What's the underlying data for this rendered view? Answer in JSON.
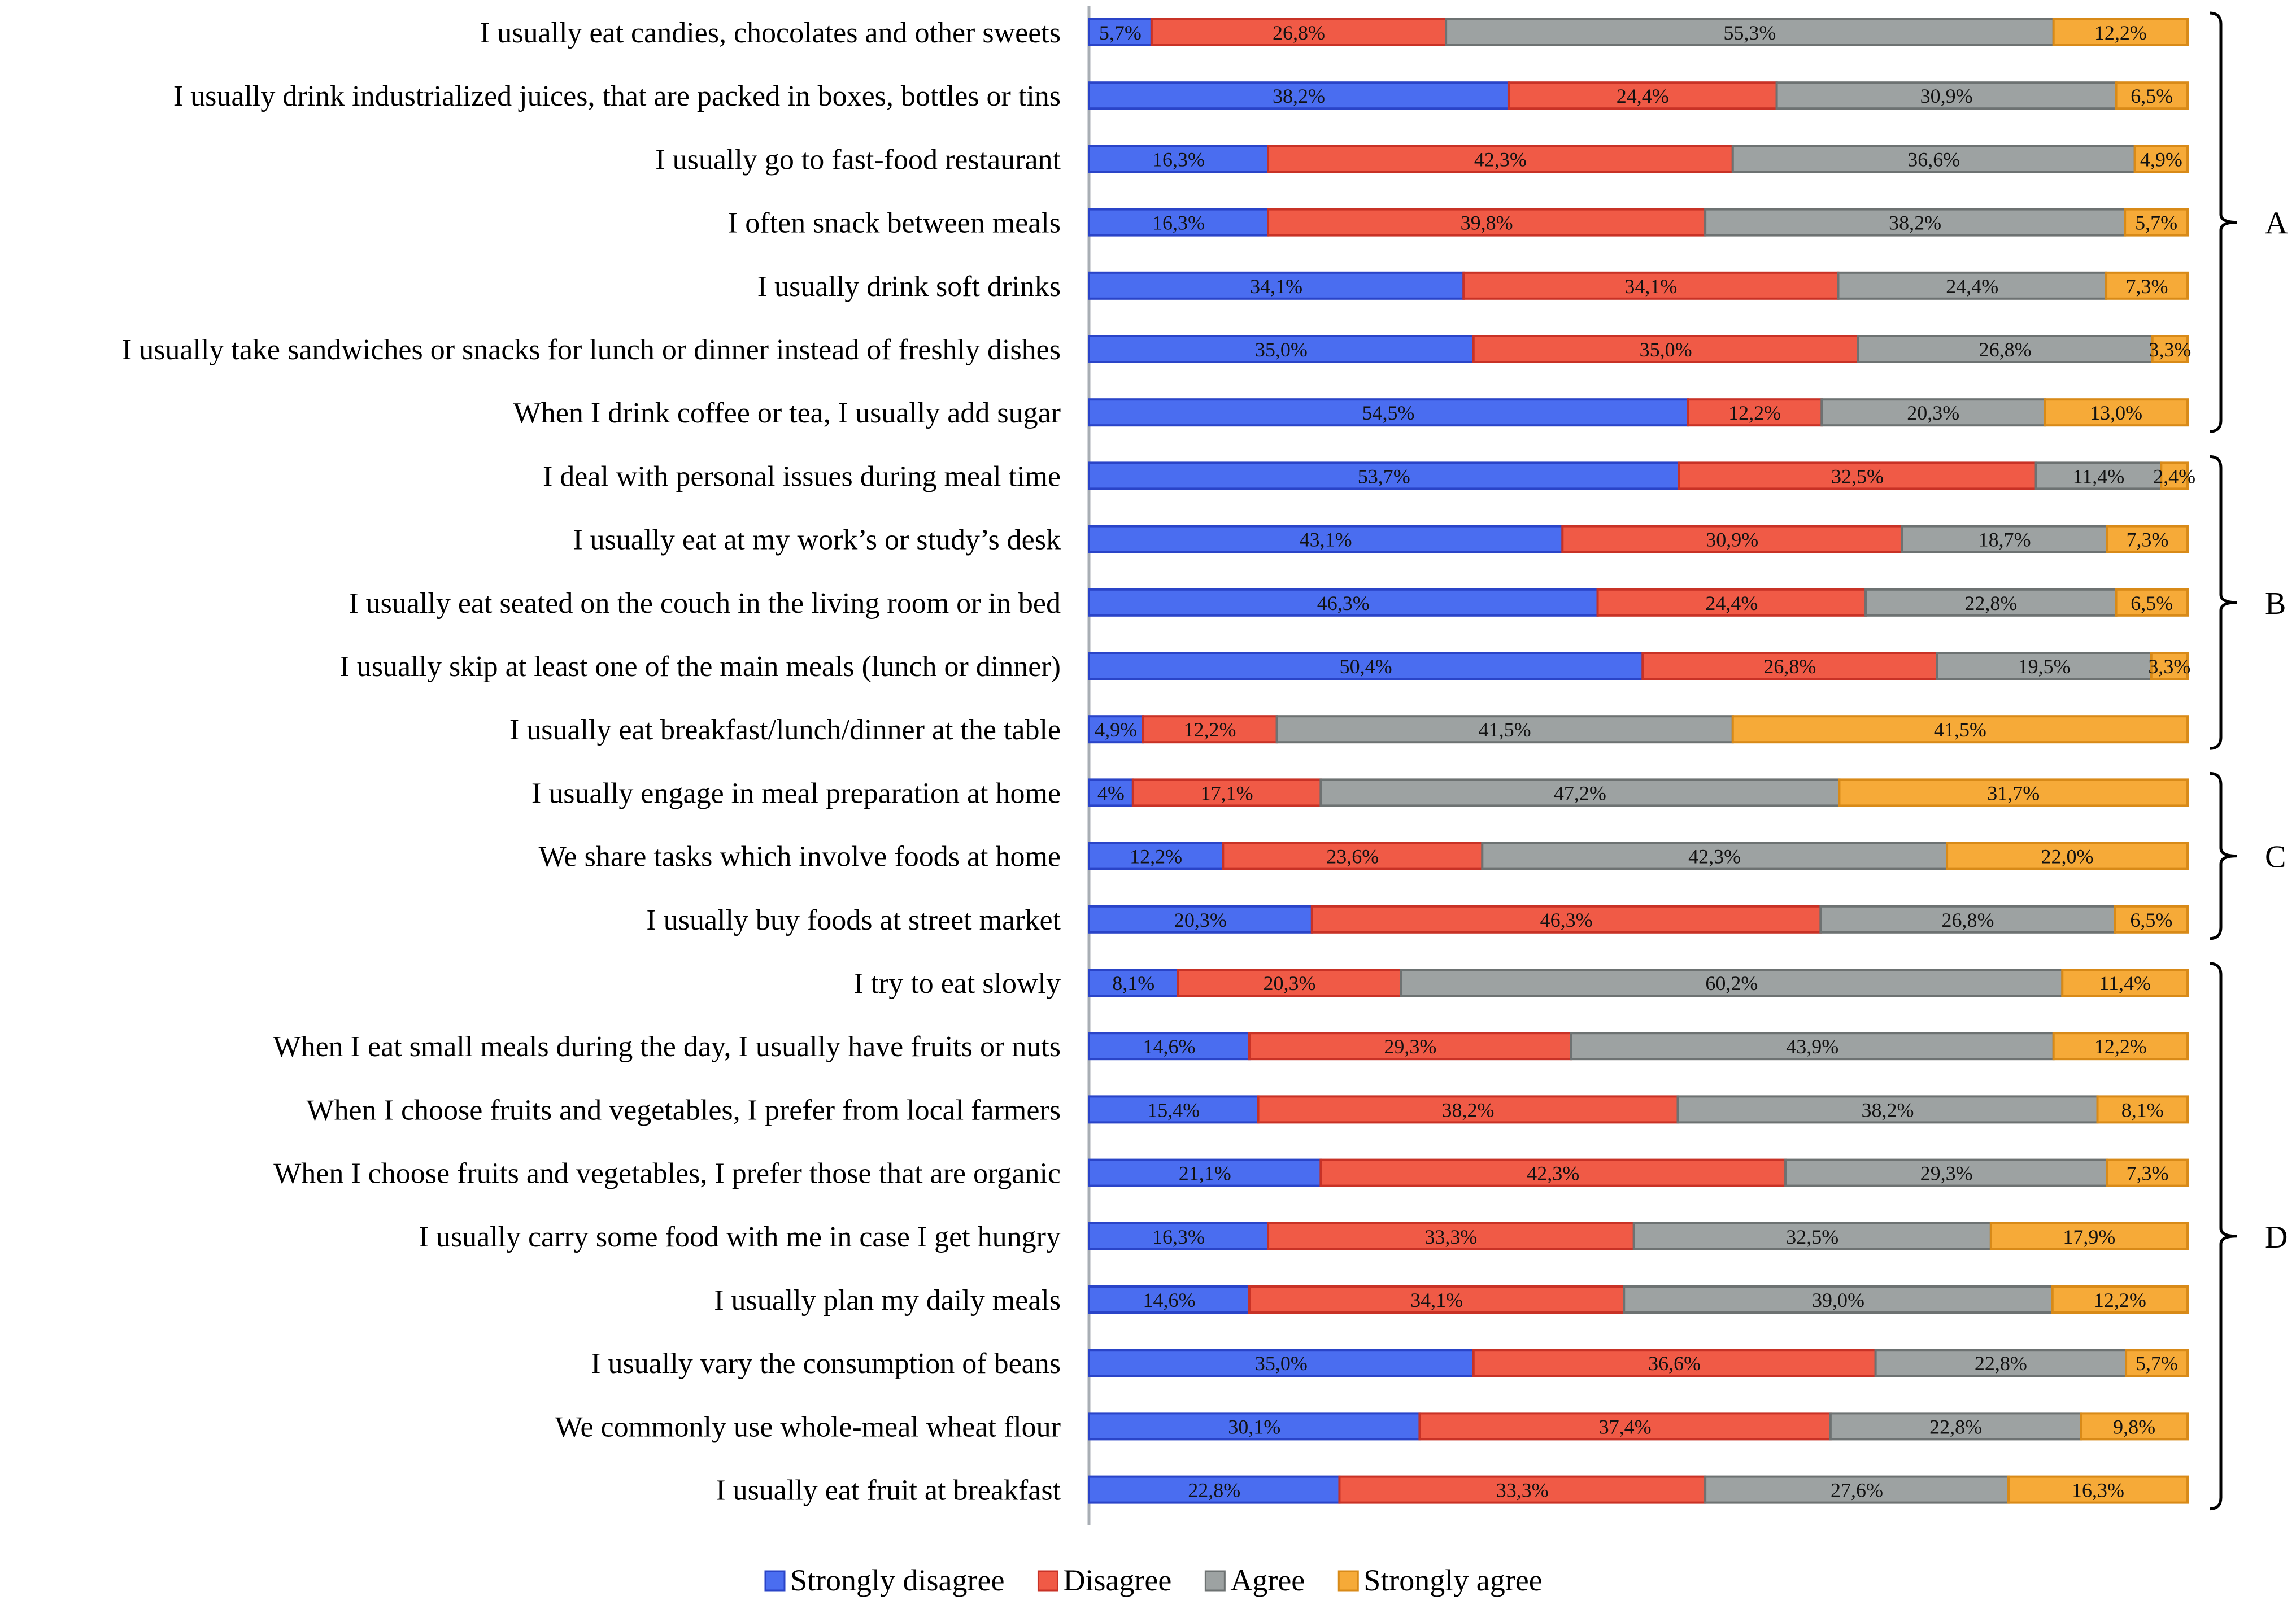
{
  "chart_data": {
    "type": "bar",
    "orientation": "horizontal",
    "stacked": true,
    "normalized": true,
    "title": "",
    "xlabel": "",
    "ylabel": "",
    "xlim": [
      0,
      100
    ],
    "grid": false,
    "legend_position": "bottom",
    "series": [
      {
        "name": "Strongly disagree",
        "color": "#4a6df0",
        "edge": "#2a44c8"
      },
      {
        "name": "Disagree",
        "color": "#f05a46",
        "edge": "#c83226"
      },
      {
        "name": "Agree",
        "color": "#9da2a2",
        "edge": "#6d7272"
      },
      {
        "name": "Strongly agree",
        "color": "#f6aa38",
        "edge": "#d88a18"
      }
    ],
    "rows": [
      {
        "label": "I usually eat candies, chocolates and other sweets",
        "values": [
          5.7,
          26.8,
          55.3,
          12.2
        ],
        "texts": [
          "5,7%",
          "26,8%",
          "55,3%",
          "12,2%"
        ]
      },
      {
        "label": "I usually drink industrialized juices, that are packed in boxes, bottles or tins",
        "values": [
          38.2,
          24.4,
          30.9,
          6.5
        ],
        "texts": [
          "38,2%",
          "24,4%",
          "30,9%",
          "6,5%"
        ]
      },
      {
        "label": "I usually go to fast-food restaurant",
        "values": [
          16.3,
          42.3,
          36.6,
          4.9
        ],
        "texts": [
          "16,3%",
          "42,3%",
          "36,6%",
          "4,9%"
        ]
      },
      {
        "label": "I often snack between meals",
        "values": [
          16.3,
          39.8,
          38.2,
          5.7
        ],
        "texts": [
          "16,3%",
          "39,8%",
          "38,2%",
          "5,7%"
        ]
      },
      {
        "label": "I usually drink soft drinks",
        "values": [
          34.1,
          34.1,
          24.4,
          7.3
        ],
        "texts": [
          "34,1%",
          "34,1%",
          "24,4%",
          "7,3%"
        ]
      },
      {
        "label": "I usually take sandwiches or snacks  for lunch or dinner instead of freshly dishes",
        "values": [
          35.0,
          35.0,
          26.8,
          3.3
        ],
        "texts": [
          "35,0%",
          "35,0%",
          "26,8%",
          "3,3%"
        ]
      },
      {
        "label": "When I drink coffee or tea, I usually add sugar",
        "values": [
          54.5,
          12.2,
          20.3,
          13.0
        ],
        "texts": [
          "54,5%",
          "12,2%",
          "20,3%",
          "13,0%"
        ]
      },
      {
        "label": "I deal with personal issues during meal time",
        "values": [
          53.7,
          32.5,
          11.4,
          2.4
        ],
        "texts": [
          "53,7%",
          "32,5%",
          "11,4%",
          "2,4%"
        ]
      },
      {
        "label": "I usually eat at my work’s or study’s desk",
        "values": [
          43.1,
          30.9,
          18.7,
          7.3
        ],
        "texts": [
          "43,1%",
          "30,9%",
          "18,7%",
          "7,3%"
        ]
      },
      {
        "label": "I usually eat seated on the couch in the living room or in bed",
        "values": [
          46.3,
          24.4,
          22.8,
          6.5
        ],
        "texts": [
          "46,3%",
          "24,4%",
          "22,8%",
          "6,5%"
        ]
      },
      {
        "label": "I usually skip at least one of the main meals (lunch or dinner)",
        "values": [
          50.4,
          26.8,
          19.5,
          3.3
        ],
        "texts": [
          "50,4%",
          "26,8%",
          "19,5%",
          "3,3%"
        ]
      },
      {
        "label": "I usually eat breakfast/lunch/dinner at the table",
        "values": [
          4.9,
          12.2,
          41.5,
          41.5
        ],
        "texts": [
          "4,9%",
          "12,2%",
          "41,5%",
          "41,5%"
        ]
      },
      {
        "label": "I usually engage in meal preparation at home",
        "values": [
          4.0,
          17.1,
          47.2,
          31.7
        ],
        "texts": [
          "4%",
          "17,1%",
          "47,2%",
          "31,7%"
        ]
      },
      {
        "label": "We share tasks which involve foods at home",
        "values": [
          12.2,
          23.6,
          42.3,
          22.0
        ],
        "texts": [
          "12,2%",
          "23,6%",
          "42,3%",
          "22,0%"
        ]
      },
      {
        "label": "I usually buy foods at street market",
        "values": [
          20.3,
          46.3,
          26.8,
          6.5
        ],
        "texts": [
          "20,3%",
          "46,3%",
          "26,8%",
          "6,5%"
        ]
      },
      {
        "label": "I try to eat slowly",
        "values": [
          8.1,
          20.3,
          60.2,
          11.4
        ],
        "texts": [
          "8,1%",
          "20,3%",
          "60,2%",
          "11,4%"
        ]
      },
      {
        "label": "When I eat small meals during the day, I usually have fruits or nuts",
        "values": [
          14.6,
          29.3,
          43.9,
          12.2
        ],
        "texts": [
          "14,6%",
          "29,3%",
          "43,9%",
          "12,2%"
        ]
      },
      {
        "label": "When I choose fruits and vegetables, I prefer  from local farmers",
        "values": [
          15.4,
          38.2,
          38.2,
          8.1
        ],
        "texts": [
          "15,4%",
          "38,2%",
          "38,2%",
          "8,1%"
        ]
      },
      {
        "label": "When I choose fruits and vegetables, I prefer those that are organic",
        "values": [
          21.1,
          42.3,
          29.3,
          7.3
        ],
        "texts": [
          "21,1%",
          "42,3%",
          "29,3%",
          "7,3%"
        ]
      },
      {
        "label": "I usually carry some food with me in case I get hungry",
        "values": [
          16.3,
          33.3,
          32.5,
          17.9
        ],
        "texts": [
          "16,3%",
          "33,3%",
          "32,5%",
          "17,9%"
        ]
      },
      {
        "label": "I usually plan my daily meals",
        "values": [
          14.6,
          34.1,
          39.0,
          12.2
        ],
        "texts": [
          "14,6%",
          "34,1%",
          "39,0%",
          "12,2%"
        ]
      },
      {
        "label": "I usually vary the consumption of beans",
        "values": [
          35.0,
          36.6,
          22.8,
          5.7
        ],
        "texts": [
          "35,0%",
          "36,6%",
          "22,8%",
          "5,7%"
        ]
      },
      {
        "label": "We commonly use whole-meal wheat flour",
        "values": [
          30.1,
          37.4,
          22.8,
          9.8
        ],
        "texts": [
          "30,1%",
          "37,4%",
          "22,8%",
          "9,8%"
        ]
      },
      {
        "label": "I usually eat fruit at breakfast",
        "values": [
          22.8,
          33.3,
          27.6,
          16.3
        ],
        "texts": [
          "22,8%",
          "33,3%",
          "27,6%",
          "16,3%"
        ]
      }
    ],
    "groups": [
      {
        "label": "A",
        "first_row": 0,
        "last_row": 6
      },
      {
        "label": "B",
        "first_row": 7,
        "last_row": 11
      },
      {
        "label": "C",
        "first_row": 12,
        "last_row": 14
      },
      {
        "label": "D",
        "first_row": 15,
        "last_row": 23
      }
    ]
  }
}
